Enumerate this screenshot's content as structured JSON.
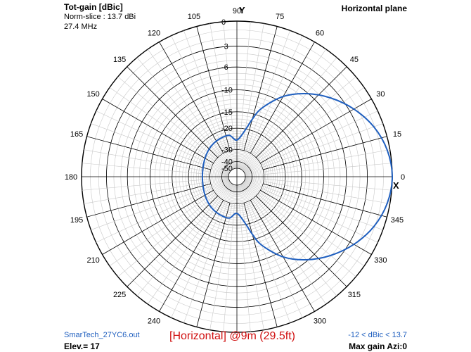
{
  "header": {
    "title": "Tot-gain [dBic]",
    "norm_slice": "Norm-slice : 13.7 dBi",
    "frequency": "27.4 MHz",
    "plane": "Horizontal plane"
  },
  "footer": {
    "file": "SmarTech_27YC6.out",
    "elevation": "Elev.= 17",
    "caption": "[Horizontal] @9m (29.5ft)",
    "range": "-12 < dBic < 13.7",
    "max_gain": "Max gain Azi:0"
  },
  "axes": {
    "x_label": "X",
    "y_label": "Y"
  },
  "colors": {
    "pattern": "#1f5fbf",
    "caption": "#d01010",
    "grid_major": "#000000",
    "grid_minor": "#c8c8c8"
  },
  "chart_data": {
    "type": "line",
    "polar": true,
    "angle_unit": "degrees",
    "angle_ticks": [
      0,
      15,
      30,
      45,
      60,
      75,
      90,
      105,
      120,
      135,
      150,
      165,
      180,
      195,
      210,
      225,
      240,
      255,
      270,
      285,
      300,
      315,
      330,
      345
    ],
    "angle_tick_labels": [
      "0",
      "15",
      "30",
      "45",
      "60",
      "75",
      "90",
      "105",
      "120",
      "135",
      "150",
      "165",
      "180",
      "195",
      "210",
      "225",
      "240",
      "",
      "",
      "",
      "300",
      "315",
      "330",
      "345"
    ],
    "radial_ticks": [
      0,
      -3,
      -6,
      -10,
      -15,
      -20,
      -30,
      -40,
      -50
    ],
    "radial_tick_labels": [
      "0",
      "-3",
      "-6",
      "-10",
      "-15",
      "-20",
      "-30",
      "-40",
      "-50"
    ],
    "series": [
      {
        "azimuth": [
          0,
          10,
          20,
          30,
          40,
          50,
          60,
          70,
          75,
          80,
          90,
          100,
          110,
          120,
          130,
          140,
          150,
          160,
          170,
          180,
          190,
          200,
          210,
          220,
          230,
          240,
          250,
          260,
          270,
          280,
          285,
          290,
          300,
          310,
          320,
          330,
          340,
          350
        ],
        "gain_db": [
          0,
          -0.3,
          -1.1,
          -2.4,
          -4.1,
          -6.2,
          -8.9,
          -13,
          -16.5,
          -20.5,
          -24.8,
          -22.5,
          -22.5,
          -22.8,
          -23.3,
          -24,
          -24.7,
          -25.3,
          -25.7,
          -25.8,
          -25.7,
          -25.3,
          -24.7,
          -24,
          -23.3,
          -22.8,
          -22.5,
          -22.5,
          -24.8,
          -20.5,
          -16.5,
          -13,
          -8.9,
          -6.2,
          -4.1,
          -2.4,
          -1.1,
          -0.3
        ]
      }
    ]
  }
}
